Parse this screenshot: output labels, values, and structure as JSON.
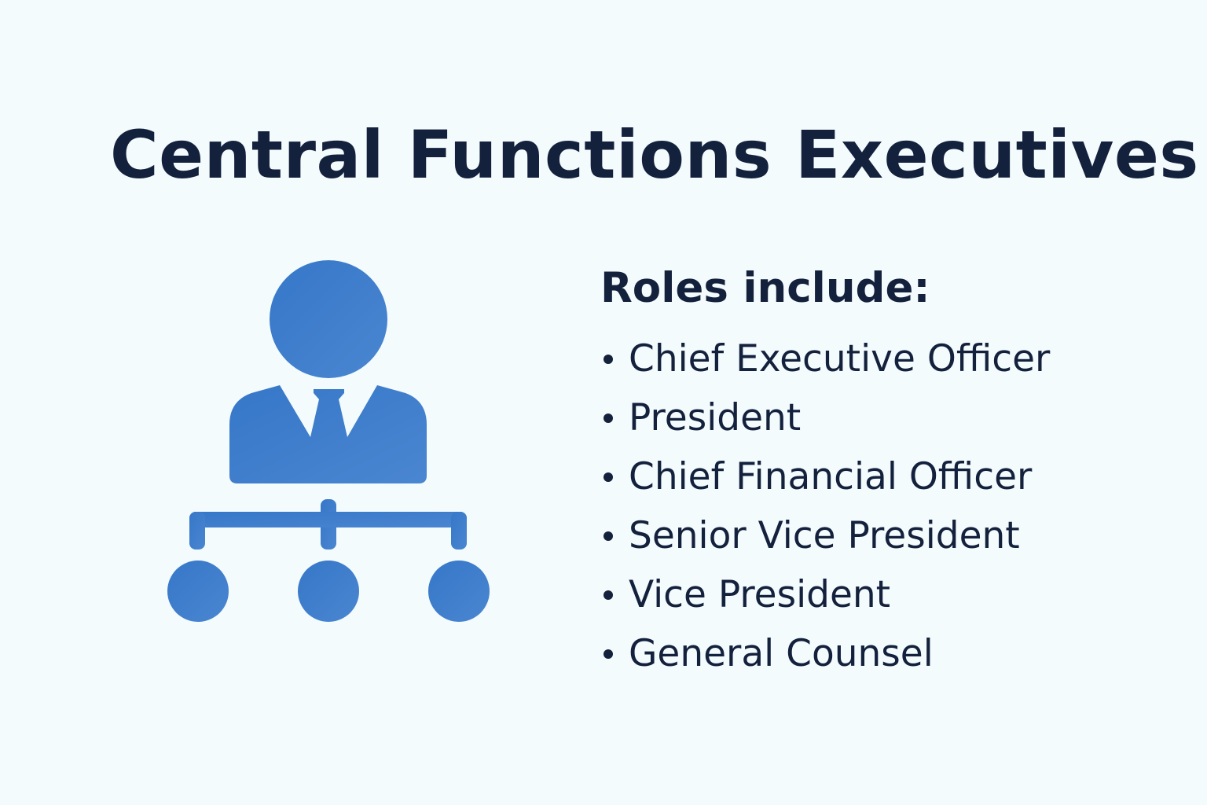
{
  "title": "Central Functions Executives",
  "roles": {
    "heading": "Roles include:",
    "items": [
      "Chief Executive Officer",
      "President",
      "Chief Financial Officer",
      "Senior Vice President",
      "Vice President",
      "General Counsel"
    ]
  },
  "icon": {
    "name": "executive-org-chart-icon",
    "color": "#3f7fcc"
  }
}
